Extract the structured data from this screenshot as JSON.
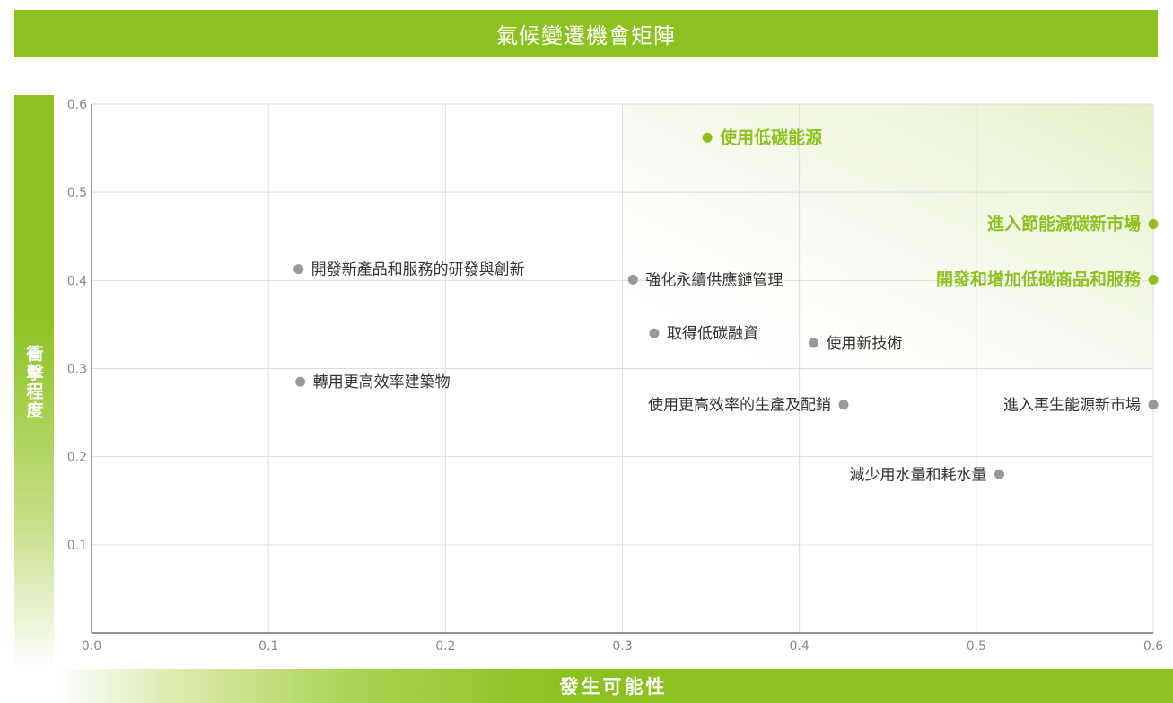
{
  "header": {
    "title": "氣候變遷機會矩陣"
  },
  "axes": {
    "ylabel": "衝擊程度",
    "xlabel": "發生可能性"
  },
  "colors": {
    "accent": "#8cc21f",
    "highlight_text": "#8cc21f",
    "normal_point": "#999999",
    "normal_text": "#333333"
  },
  "chart_data": {
    "type": "scatter",
    "title": "氣候變遷機會矩陣",
    "xlabel": "發生可能性",
    "ylabel": "衝擊程度",
    "xlim": [
      0,
      0.6
    ],
    "ylim": [
      0,
      0.6
    ],
    "xticks": [
      "0.0",
      "0.1",
      "0.2",
      "0.3",
      "0.4",
      "0.5",
      "0.6"
    ],
    "yticks": [
      "0.1",
      "0.2",
      "0.3",
      "0.4",
      "0.5",
      "0.6"
    ],
    "grid": true,
    "points": [
      {
        "label": "使用低碳能源",
        "x": 0.348,
        "y": 0.562,
        "highlight": true,
        "label_side": "right"
      },
      {
        "label": "進入節能減碳新市場",
        "x": 0.6,
        "y": 0.464,
        "highlight": true,
        "label_side": "left"
      },
      {
        "label": "開發和增加低碳商品和服務",
        "x": 0.6,
        "y": 0.401,
        "highlight": true,
        "label_side": "left"
      },
      {
        "label": "開發新產品和服務的研發與創新",
        "x": 0.117,
        "y": 0.413,
        "highlight": false,
        "label_side": "right"
      },
      {
        "label": "強化永續供應鏈管理",
        "x": 0.306,
        "y": 0.401,
        "highlight": false,
        "label_side": "right"
      },
      {
        "label": "取得低碳融資",
        "x": 0.318,
        "y": 0.34,
        "highlight": false,
        "label_side": "right"
      },
      {
        "label": "使用新技術",
        "x": 0.408,
        "y": 0.329,
        "highlight": false,
        "label_side": "right"
      },
      {
        "label": "轉用更高效率建築物",
        "x": 0.118,
        "y": 0.285,
        "highlight": false,
        "label_side": "right"
      },
      {
        "label": "使用更高效率的生產及配銷",
        "x": 0.425,
        "y": 0.259,
        "highlight": false,
        "label_side": "left"
      },
      {
        "label": "進入再生能源新市場",
        "x": 0.6,
        "y": 0.259,
        "highlight": false,
        "label_side": "left"
      },
      {
        "label": "減少用水量和耗水量",
        "x": 0.513,
        "y": 0.18,
        "highlight": false,
        "label_side": "left"
      }
    ]
  }
}
